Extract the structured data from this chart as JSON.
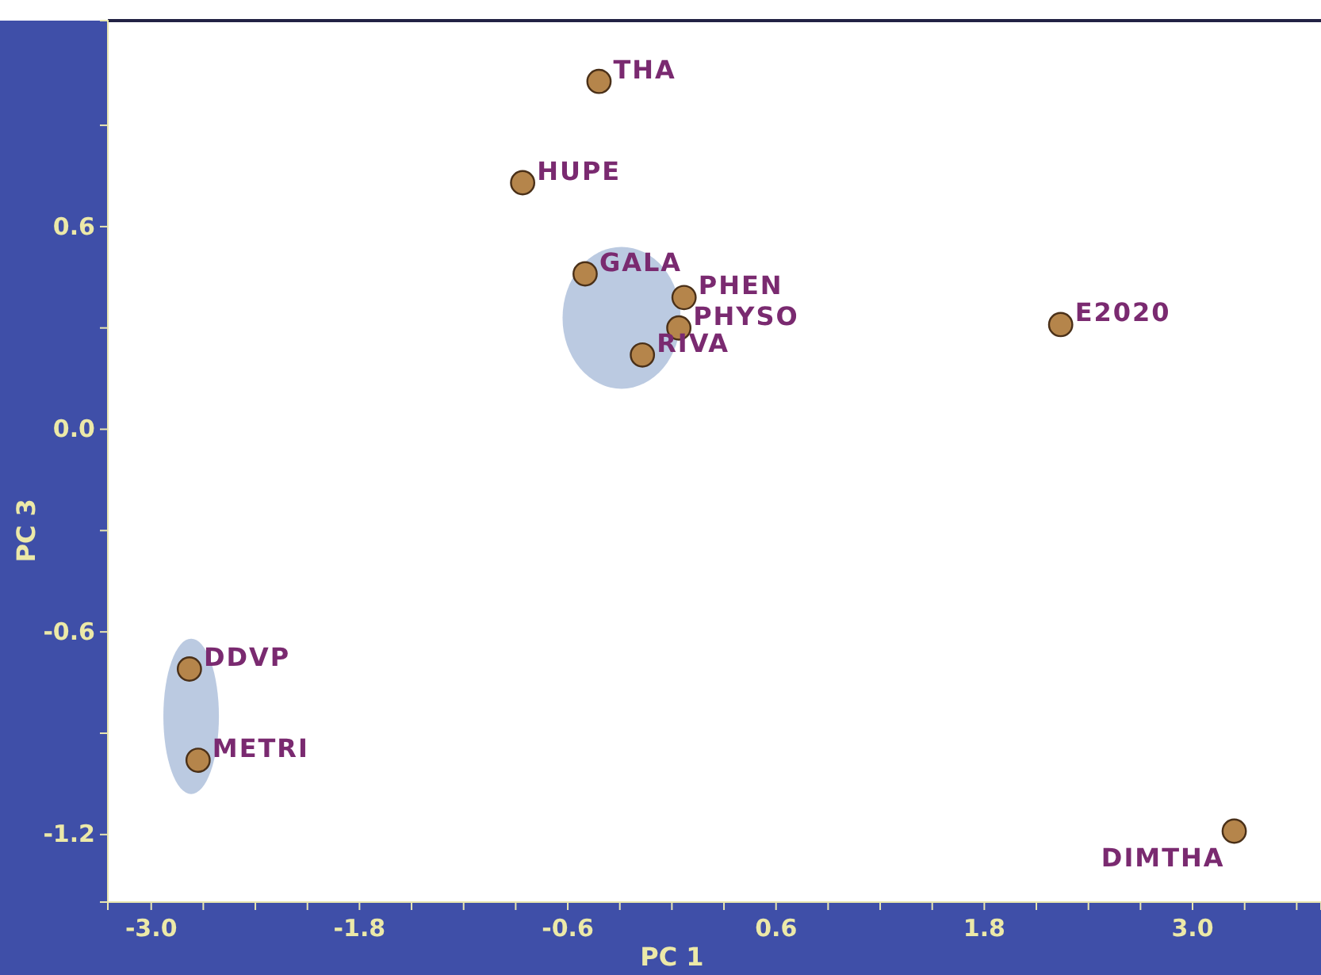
{
  "chart_data": {
    "type": "scatter",
    "xlabel": "PC 1",
    "ylabel": "PC 3",
    "xlim": [
      -3.25,
      3.74
    ],
    "ylim": [
      -1.4,
      1.21
    ],
    "xticks": [
      {
        "value": -3,
        "label": "-3.0"
      },
      {
        "value": -2.7,
        "label": null
      },
      {
        "value": -2.4,
        "label": null
      },
      {
        "value": -2.1,
        "label": null
      },
      -1.8,
      {
        "value": -1.5,
        "label": null
      },
      {
        "value": -1.2,
        "label": null
      },
      {
        "value": -0.9,
        "label": null
      },
      -0.6,
      {
        "value": -0.3,
        "label": null
      },
      {
        "value": 0,
        "label": null
      },
      {
        "value": 0.3,
        "label": null
      },
      0.6,
      {
        "value": 0.9,
        "label": null
      },
      {
        "value": 1.2,
        "label": null
      },
      {
        "value": 1.5,
        "label": null
      },
      1.8,
      {
        "value": 2.1,
        "label": null
      },
      {
        "value": 2.4,
        "label": null
      },
      {
        "value": 2.7,
        "label": null
      },
      {
        "value": 3,
        "label": "3.0"
      },
      {
        "value": 3.3,
        "label": null
      },
      {
        "value": 3.6,
        "label": null
      }
    ],
    "yticks": [
      -1.2,
      {
        "value": -0.9,
        "label": null
      },
      -0.6,
      {
        "value": -0.3,
        "label": null
      },
      {
        "value": 0,
        "label": "0.0"
      },
      {
        "value": 0.3,
        "label": null
      },
      0.6,
      {
        "value": 0.9,
        "label": null
      }
    ],
    "grid": false,
    "marker": "circle",
    "series": [
      {
        "name": "THA",
        "color": "#b5854b",
        "x": [
          -0.42
        ],
        "values": [
          1.03
        ]
      },
      {
        "name": "HUPE",
        "color": "#b5854b",
        "x": [
          -0.86
        ],
        "values": [
          0.73
        ]
      },
      {
        "name": "GALA",
        "color": "#b5854b",
        "x": [
          -0.5
        ],
        "values": [
          0.46
        ]
      },
      {
        "name": "PHEN",
        "color": "#b5854b",
        "x": [
          0.07
        ],
        "values": [
          0.39
        ]
      },
      {
        "name": "PHYSO",
        "color": "#b5854b",
        "x": [
          0.04
        ],
        "values": [
          0.3
        ]
      },
      {
        "name": "RIVA",
        "color": "#b5854b",
        "x": [
          -0.17
        ],
        "values": [
          0.22
        ]
      },
      {
        "name": "E2020",
        "color": "#b5854b",
        "x": [
          2.24
        ],
        "values": [
          0.31
        ]
      },
      {
        "name": "DDVP",
        "color": "#b5854b",
        "x": [
          -2.78
        ],
        "values": [
          -0.71
        ]
      },
      {
        "name": "METRI",
        "color": "#b5854b",
        "x": [
          -2.73
        ],
        "values": [
          -0.98
        ]
      },
      {
        "name": "DIMTHA",
        "color": "#b5854b",
        "x": [
          3.24
        ],
        "values": [
          -1.19
        ]
      }
    ]
  }
}
